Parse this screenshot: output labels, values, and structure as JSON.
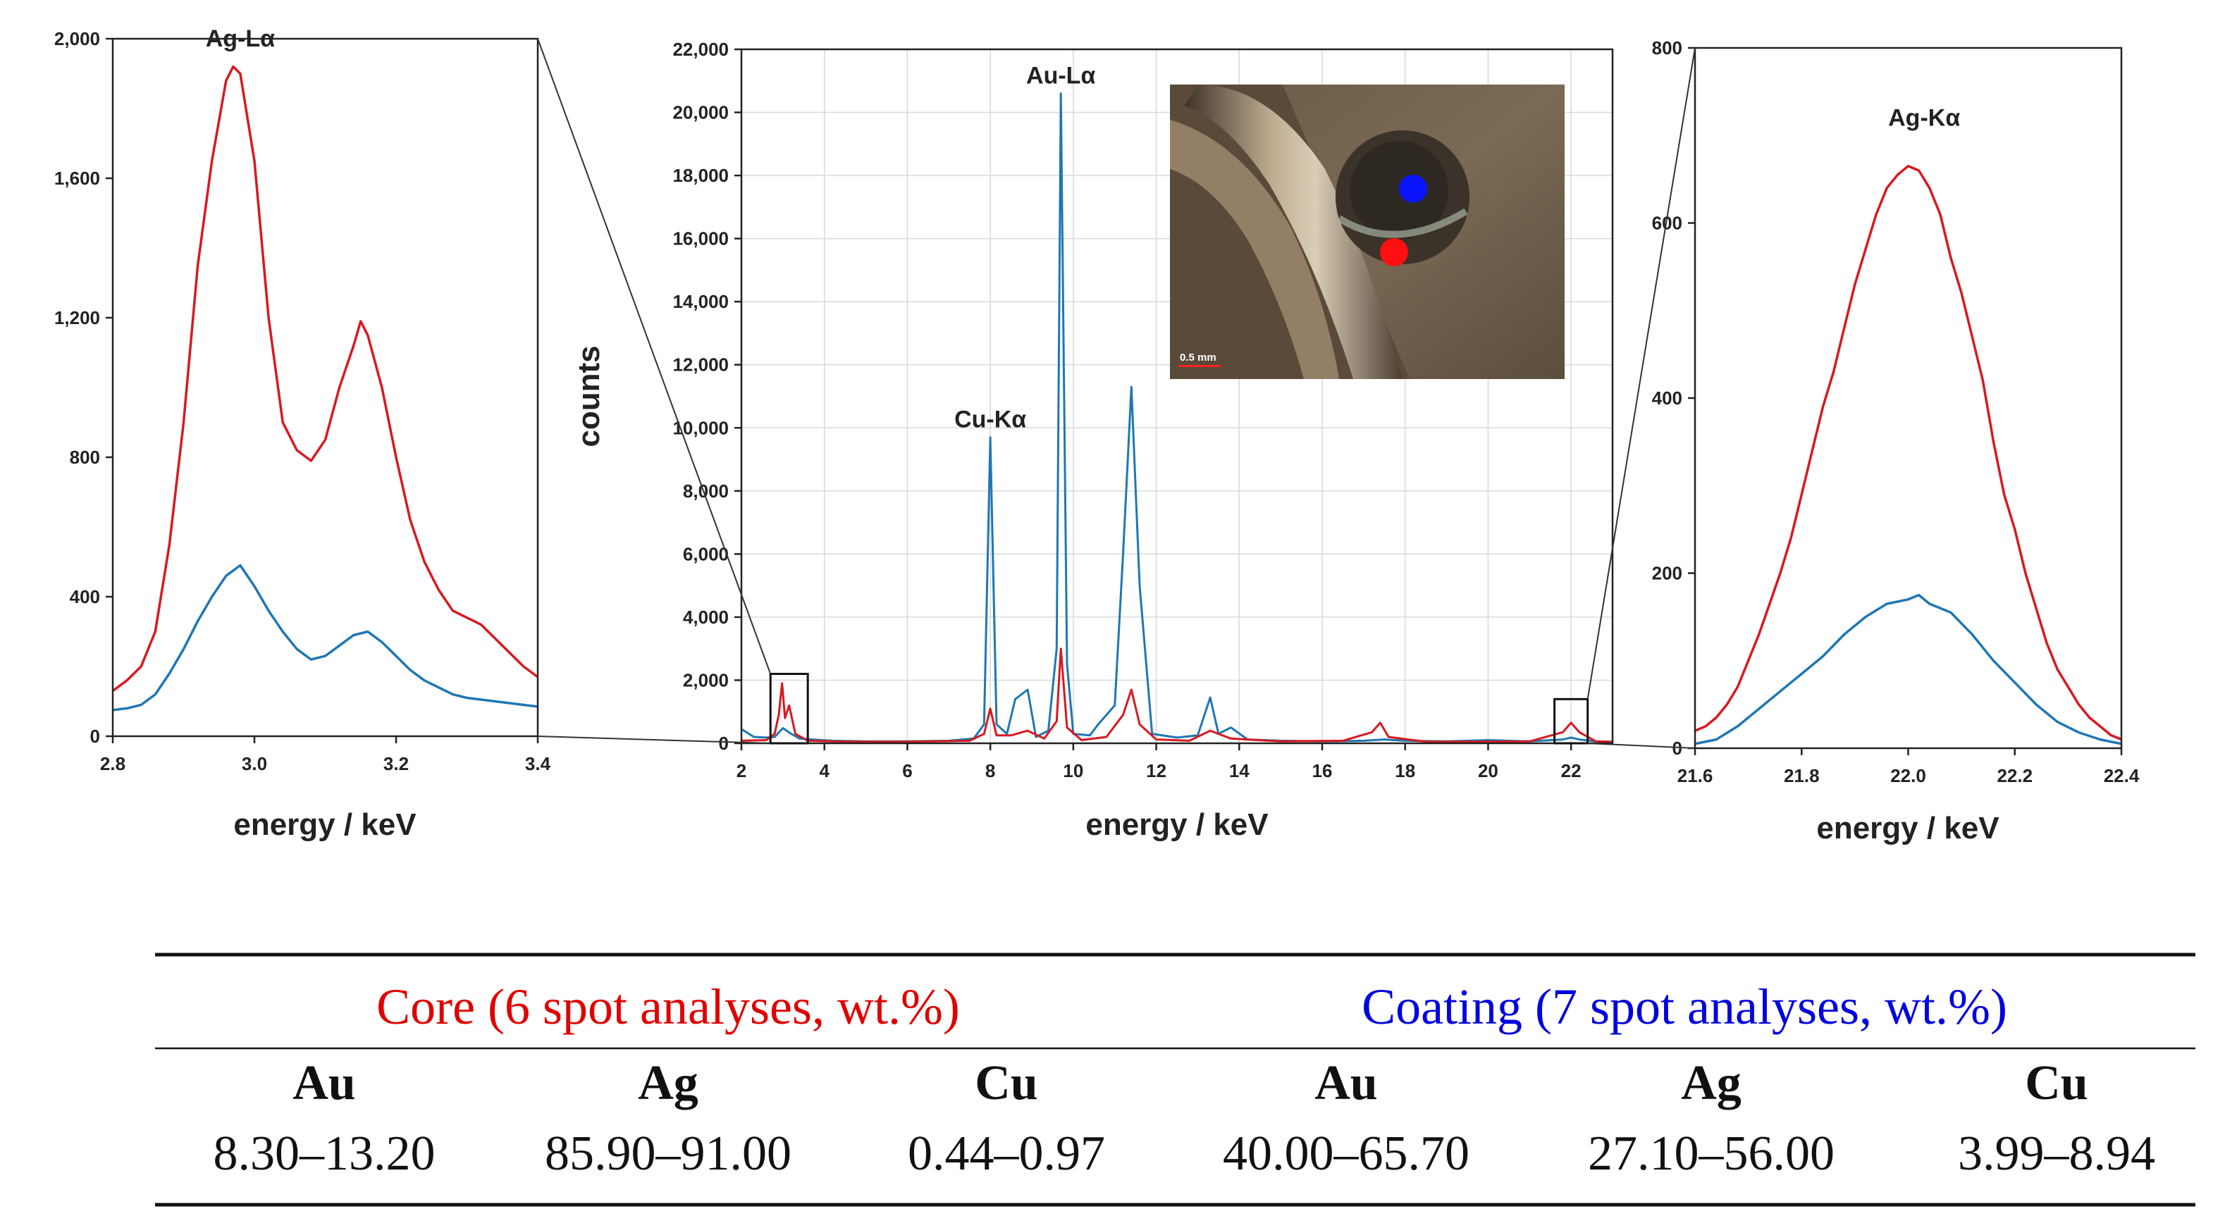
{
  "chart_data": [
    {
      "type": "line",
      "panel": "left-zoom",
      "xlabel": "energy / keV",
      "ylabel": "",
      "xlim": [
        2.8,
        3.4
      ],
      "ylim": [
        0,
        2000
      ],
      "xticks": [
        2.8,
        3.0,
        3.2,
        3.4
      ],
      "xtick_labels": [
        "2.8",
        "3.0",
        "3.2",
        "3.4"
      ],
      "yticks": [
        0,
        400,
        800,
        1200,
        1600,
        2000
      ],
      "ytick_labels": [
        "0",
        "400",
        "800",
        "1,200",
        "1,600",
        "2,000"
      ],
      "grid": false,
      "annotations": [
        {
          "text": "Ag-Lα",
          "x": 2.98,
          "y": 1950
        }
      ],
      "series": [
        {
          "color": "#d71920",
          "x": [
            2.8,
            2.82,
            2.84,
            2.86,
            2.88,
            2.9,
            2.92,
            2.94,
            2.96,
            2.97,
            2.98,
            3.0,
            3.02,
            3.04,
            3.06,
            3.08,
            3.1,
            3.12,
            3.14,
            3.15,
            3.16,
            3.18,
            3.2,
            3.22,
            3.24,
            3.26,
            3.28,
            3.3,
            3.32,
            3.34,
            3.36,
            3.38,
            3.4
          ],
          "y": [
            130,
            160,
            200,
            300,
            550,
            900,
            1350,
            1650,
            1880,
            1920,
            1900,
            1650,
            1200,
            900,
            820,
            790,
            850,
            1000,
            1120,
            1190,
            1150,
            1000,
            800,
            620,
            500,
            420,
            360,
            340,
            320,
            280,
            240,
            200,
            170
          ]
        },
        {
          "color": "#1f77b4",
          "x": [
            2.8,
            2.82,
            2.84,
            2.86,
            2.88,
            2.9,
            2.92,
            2.94,
            2.96,
            2.98,
            3.0,
            3.02,
            3.04,
            3.06,
            3.08,
            3.1,
            3.12,
            3.14,
            3.16,
            3.18,
            3.2,
            3.22,
            3.24,
            3.26,
            3.28,
            3.3,
            3.32,
            3.34,
            3.36,
            3.38,
            3.4
          ],
          "y": [
            75,
            80,
            90,
            120,
            180,
            250,
            330,
            400,
            460,
            490,
            430,
            360,
            300,
            250,
            220,
            230,
            260,
            290,
            300,
            270,
            230,
            190,
            160,
            140,
            120,
            110,
            105,
            100,
            95,
            90,
            85
          ]
        }
      ]
    },
    {
      "type": "line",
      "panel": "main",
      "xlabel": "energy / keV",
      "ylabel": "counts",
      "xlim": [
        2,
        23
      ],
      "ylim": [
        0,
        22000
      ],
      "xticks": [
        2,
        4,
        6,
        8,
        10,
        12,
        14,
        16,
        18,
        20,
        22
      ],
      "xtick_labels": [
        "2",
        "4",
        "6",
        "8",
        "10",
        "12",
        "14",
        "16",
        "18",
        "20",
        "22"
      ],
      "yticks": [
        0,
        2000,
        4000,
        6000,
        8000,
        10000,
        12000,
        14000,
        16000,
        18000,
        20000,
        22000
      ],
      "ytick_labels": [
        "0",
        "2,000",
        "4,000",
        "6,000",
        "8,000",
        "10,000",
        "12,000",
        "14,000",
        "16,000",
        "18,000",
        "20,000",
        "22,000"
      ],
      "grid": true,
      "annotations": [
        {
          "text": "Au-Lα",
          "x": 9.7,
          "y": 20600
        },
        {
          "text": "Cu-Kα",
          "x": 8.0,
          "y": 9700
        }
      ],
      "zoom_boxes": [
        {
          "x": [
            2.7,
            3.6
          ],
          "y": [
            0,
            2200
          ]
        },
        {
          "x": [
            21.6,
            22.4
          ],
          "y": [
            0,
            1400
          ]
        }
      ],
      "inset_image": {
        "scale_label": "0.5 mm",
        "markers": [
          "#0000ff",
          "#ff0000"
        ]
      },
      "series": [
        {
          "color": "#1f77b4",
          "x": [
            2.0,
            2.3,
            2.6,
            2.8,
            3.0,
            3.2,
            3.4,
            3.7,
            4.2,
            5.0,
            6.0,
            7.0,
            7.6,
            7.85,
            8.0,
            8.15,
            8.4,
            8.6,
            8.9,
            9.1,
            9.4,
            9.6,
            9.7,
            9.85,
            10.0,
            10.4,
            10.6,
            11.0,
            11.2,
            11.4,
            11.6,
            11.9,
            12.5,
            13.0,
            13.3,
            13.5,
            13.8,
            14.2,
            15.0,
            16.0,
            17.0,
            17.5,
            18.0,
            19.0,
            20.0,
            21.0,
            21.8,
            22.0,
            22.2,
            22.6,
            23.0
          ],
          "y": [
            450,
            200,
            180,
            200,
            480,
            300,
            150,
            120,
            80,
            60,
            60,
            80,
            150,
            600,
            9700,
            600,
            300,
            1400,
            1700,
            200,
            400,
            3000,
            20600,
            2500,
            300,
            250,
            600,
            1200,
            6000,
            11300,
            5000,
            300,
            180,
            250,
            1450,
            300,
            500,
            120,
            80,
            60,
            80,
            120,
            80,
            60,
            100,
            60,
            120,
            180,
            120,
            60,
            50
          ]
        },
        {
          "color": "#d71920",
          "x": [
            2.0,
            2.6,
            2.8,
            2.9,
            2.98,
            3.05,
            3.15,
            3.3,
            3.6,
            4.5,
            6.0,
            7.5,
            7.85,
            8.0,
            8.15,
            8.5,
            8.9,
            9.3,
            9.6,
            9.7,
            9.85,
            10.2,
            10.8,
            11.2,
            11.4,
            11.6,
            12.0,
            12.8,
            13.3,
            13.8,
            15.0,
            16.5,
            17.2,
            17.4,
            17.6,
            18.5,
            20.0,
            21.0,
            21.8,
            22.0,
            22.2,
            22.6,
            23.0
          ],
          "y": [
            80,
            100,
            300,
            900,
            1900,
            800,
            1200,
            300,
            80,
            50,
            50,
            80,
            300,
            1100,
            250,
            250,
            400,
            150,
            700,
            3000,
            500,
            100,
            200,
            900,
            1700,
            600,
            120,
            80,
            400,
            150,
            60,
            80,
            350,
            650,
            200,
            50,
            50,
            60,
            350,
            650,
            350,
            60,
            40
          ]
        }
      ]
    },
    {
      "type": "line",
      "panel": "right-zoom",
      "xlabel": "energy / keV",
      "ylabel": "",
      "xlim": [
        21.6,
        22.4
      ],
      "ylim": [
        0,
        800
      ],
      "xticks": [
        21.6,
        21.8,
        22.0,
        22.2,
        22.4
      ],
      "xtick_labels": [
        "21.6",
        "21.8",
        "22.0",
        "22.2",
        "22.4"
      ],
      "yticks": [
        0,
        200,
        400,
        600,
        800
      ],
      "ytick_labels": [
        "0",
        "200",
        "400",
        "600",
        "800"
      ],
      "grid": false,
      "annotations": [
        {
          "text": "Ag-Kα",
          "x": 22.03,
          "y": 700
        }
      ],
      "series": [
        {
          "color": "#d71920",
          "x": [
            21.6,
            21.62,
            21.64,
            21.66,
            21.68,
            21.7,
            21.72,
            21.74,
            21.76,
            21.78,
            21.8,
            21.82,
            21.84,
            21.86,
            21.88,
            21.9,
            21.92,
            21.94,
            21.96,
            21.98,
            22.0,
            22.02,
            22.04,
            22.06,
            22.08,
            22.1,
            22.12,
            22.14,
            22.16,
            22.18,
            22.2,
            22.22,
            22.24,
            22.26,
            22.28,
            22.3,
            22.32,
            22.34,
            22.36,
            22.38,
            22.4
          ],
          "y": [
            20,
            25,
            35,
            50,
            70,
            100,
            130,
            165,
            200,
            240,
            290,
            340,
            390,
            430,
            480,
            530,
            570,
            610,
            640,
            655,
            665,
            660,
            640,
            610,
            560,
            520,
            470,
            420,
            350,
            290,
            250,
            200,
            160,
            120,
            90,
            70,
            50,
            35,
            25,
            15,
            10
          ]
        },
        {
          "color": "#1f77b4",
          "x": [
            21.6,
            21.64,
            21.68,
            21.72,
            21.76,
            21.8,
            21.84,
            21.88,
            21.92,
            21.96,
            22.0,
            22.02,
            22.04,
            22.08,
            22.12,
            22.16,
            22.2,
            22.24,
            22.28,
            22.32,
            22.36,
            22.4
          ],
          "y": [
            5,
            10,
            25,
            45,
            65,
            85,
            105,
            130,
            150,
            165,
            170,
            175,
            165,
            155,
            130,
            100,
            75,
            50,
            30,
            18,
            10,
            5
          ]
        }
      ]
    }
  ],
  "table": {
    "groups": [
      {
        "label": "Core (6 spot analyses, wt.%)",
        "color": "#e00000"
      },
      {
        "label": "Coating (7 spot analyses, wt.%)",
        "color": "#0000e0"
      }
    ],
    "headers": [
      "Au",
      "Ag",
      "Cu",
      "Au",
      "Ag",
      "Cu"
    ],
    "values": [
      "8.30–13.20",
      "85.90–91.00",
      "0.44–0.97",
      "40.00–65.70",
      "27.10–56.00",
      "3.99–8.94"
    ]
  }
}
